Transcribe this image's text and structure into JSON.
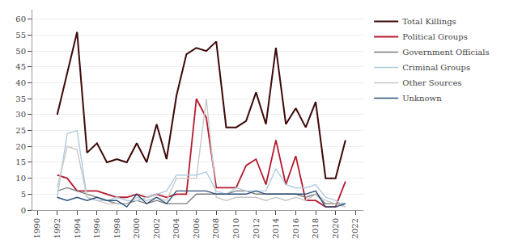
{
  "chart_data": {
    "type": "line",
    "x": [
      1990,
      1991,
      1992,
      1993,
      1994,
      1995,
      1996,
      1997,
      1998,
      1999,
      2000,
      2001,
      2002,
      2003,
      2004,
      2005,
      2006,
      2007,
      2008,
      2009,
      2010,
      2011,
      2012,
      2013,
      2014,
      2015,
      2016,
      2017,
      2018,
      2019,
      2020,
      2021,
      2022
    ],
    "series": [
      {
        "name": "Total Killings",
        "color": "#3d0808",
        "values": [
          null,
          null,
          30,
          null,
          56,
          18,
          21,
          15,
          16,
          15,
          21,
          15,
          27,
          16,
          36,
          49,
          51,
          50,
          53,
          26,
          26,
          28,
          37,
          27,
          51,
          27,
          32,
          26,
          34,
          10,
          10,
          22,
          null
        ]
      },
      {
        "name": "Political Groups",
        "color": "#b5192d",
        "values": [
          null,
          null,
          11,
          10,
          6,
          6,
          6,
          5,
          4,
          4,
          5,
          4,
          5,
          4,
          5,
          5,
          35,
          29,
          7,
          7,
          7,
          14,
          16,
          8,
          22,
          8,
          17,
          3,
          3,
          1,
          1,
          9,
          null
        ]
      },
      {
        "name": "Government Officials",
        "color": "#7a7a7a",
        "values": [
          null,
          null,
          6,
          7,
          6,
          5,
          4,
          3,
          2,
          2,
          3,
          2,
          3,
          2,
          2,
          2,
          5,
          5,
          5,
          5,
          6,
          6,
          5,
          5,
          5,
          5,
          5,
          4,
          5,
          2,
          2,
          2,
          null
        ]
      },
      {
        "name": "Criminal Groups",
        "color": "#b0cce0",
        "values": [
          null,
          null,
          4,
          24,
          25,
          4,
          3,
          3,
          4,
          3,
          3,
          4,
          5,
          6,
          11,
          11,
          11,
          12,
          6,
          5,
          7,
          6,
          6,
          6,
          13,
          8,
          7,
          7,
          8,
          4,
          3,
          1,
          null
        ]
      },
      {
        "name": "Other Sources",
        "color": "#c8c8c8",
        "values": [
          null,
          null,
          7,
          20,
          19,
          4,
          3,
          2,
          2,
          2,
          4,
          3,
          4,
          3,
          10,
          10,
          10,
          35,
          4,
          3,
          4,
          4,
          4,
          3,
          4,
          3,
          4,
          3,
          5,
          3,
          2,
          1,
          null
        ]
      },
      {
        "name": "Unknown",
        "color": "#2a4f78",
        "values": [
          null,
          null,
          4,
          3,
          4,
          3,
          4,
          3,
          3,
          1,
          5,
          2,
          4,
          2,
          6,
          6,
          6,
          6,
          5,
          5,
          5,
          5,
          6,
          5,
          5,
          5,
          5,
          5,
          6,
          1,
          1,
          2,
          null
        ]
      }
    ],
    "xlim": [
      1989.5,
      2022.8
    ],
    "xticks": [
      1990,
      1992,
      1994,
      1996,
      1998,
      2000,
      2002,
      2004,
      2006,
      2008,
      2010,
      2012,
      2014,
      2016,
      2018,
      2020,
      2022
    ],
    "ylim": [
      0,
      63
    ],
    "yticks": [
      0,
      5,
      10,
      15,
      20,
      25,
      30,
      35,
      40,
      45,
      50,
      55,
      60
    ],
    "grid": "y",
    "legend": "right"
  }
}
